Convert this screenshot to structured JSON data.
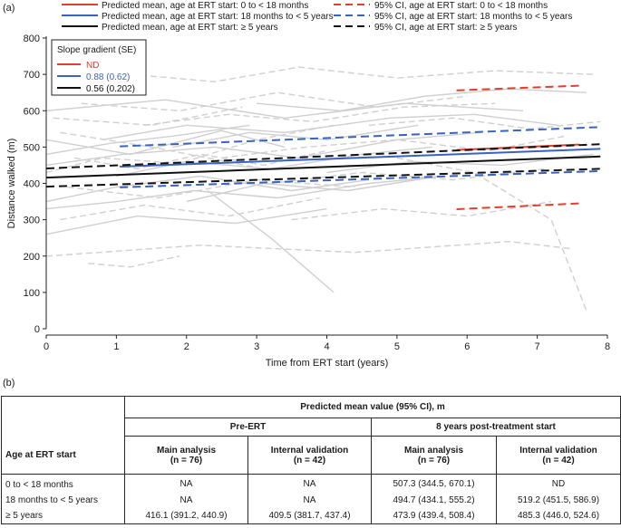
{
  "panel_a_label": "(a)",
  "panel_b_label": "(b)",
  "legend": {
    "left": [
      {
        "label": "Predicted mean, age at ERT start: 0 to < 18 months",
        "color": "#e0402e",
        "dashed": false
      },
      {
        "label": "Predicted mean, age at ERT start: 18 months to < 5 years",
        "color": "#3a62c0",
        "dashed": false
      },
      {
        "label": "Predicted mean, age at ERT start: ≥ 5 years",
        "color": "#111111",
        "dashed": false
      }
    ],
    "right": [
      {
        "label": "95% CI, age at ERT start: 0 to < 18 months",
        "color": "#e0402e",
        "dashed": true
      },
      {
        "label": "95% CI, age at ERT start: 18 months to < 5 years",
        "color": "#3a62c0",
        "dashed": true
      },
      {
        "label": "95% CI, age at ERT start: ≥ 5 years",
        "color": "#111111",
        "dashed": true
      }
    ]
  },
  "slope_box": {
    "title": "Slope gradient (SE)",
    "items": [
      {
        "value": "ND",
        "color": "#e0402e"
      },
      {
        "value": "0.88 (0.62)",
        "color": "#3a62c0"
      },
      {
        "value": "0.56 (0.202)",
        "color": "#111111"
      }
    ]
  },
  "chart_data": {
    "type": "line",
    "xlabel": "Time from ERT start (years)",
    "ylabel": "Distance walked (m)",
    "xlim": [
      0,
      8
    ],
    "ylim": [
      0,
      800
    ],
    "xticks": [
      0,
      1,
      2,
      3,
      4,
      5,
      6,
      7,
      8
    ],
    "yticks": [
      0,
      100,
      200,
      300,
      400,
      500,
      600,
      700,
      800
    ],
    "series": [
      {
        "name": "Predicted mean, 0 to < 18 months",
        "color": "#e0402e",
        "dash": false,
        "x": [
          5.85,
          7.6
        ],
        "y": [
          492,
          507
        ]
      },
      {
        "name": "95% CI, 0 to < 18 months (upper)",
        "color": "#e0402e",
        "dash": true,
        "x": [
          5.85,
          7.6
        ],
        "y": [
          656,
          669
        ]
      },
      {
        "name": "95% CI, 0 to < 18 months (lower)",
        "color": "#e0402e",
        "dash": true,
        "x": [
          5.85,
          7.6
        ],
        "y": [
          329,
          345
        ]
      },
      {
        "name": "Predicted mean, 18 months to < 5 years",
        "color": "#3a62c0",
        "dash": false,
        "x": [
          1.05,
          7.9
        ],
        "y": [
          446,
          495
        ]
      },
      {
        "name": "95% CI, 18 months to < 5 years (upper)",
        "color": "#3a62c0",
        "dash": true,
        "x": [
          1.05,
          7.9
        ],
        "y": [
          502,
          555
        ]
      },
      {
        "name": "95% CI, 18 months to < 5 years (lower)",
        "color": "#3a62c0",
        "dash": true,
        "x": [
          1.05,
          7.9
        ],
        "y": [
          389,
          434
        ]
      },
      {
        "name": "Predicted mean, ≥ 5 years",
        "color": "#111111",
        "dash": false,
        "x": [
          0,
          7.9
        ],
        "y": [
          416,
          474
        ]
      },
      {
        "name": "95% CI, ≥ 5 years (upper)",
        "color": "#111111",
        "dash": true,
        "x": [
          0,
          7.9
        ],
        "y": [
          441,
          508
        ]
      },
      {
        "name": "95% CI, ≥ 5 years (lower)",
        "color": "#111111",
        "dash": true,
        "x": [
          0,
          7.9
        ],
        "y": [
          391,
          440
        ]
      }
    ],
    "background_trajectories": [
      {
        "x": [
          0,
          1.2,
          2.5,
          3.4
        ],
        "y": [
          520,
          480,
          545,
          500
        ],
        "dash": false
      },
      {
        "x": [
          0,
          0.8,
          1.9,
          3.0,
          4.1
        ],
        "y": [
          430,
          470,
          455,
          520,
          560
        ],
        "dash": true
      },
      {
        "x": [
          0.1,
          1.5,
          2.8
        ],
        "y": [
          580,
          560,
          610
        ],
        "dash": true
      },
      {
        "x": [
          0,
          1.0,
          2.2,
          3.5,
          4.6
        ],
        "y": [
          350,
          390,
          420,
          380,
          410
        ],
        "dash": false
      },
      {
        "x": [
          0.2,
          1.4,
          2.6,
          3.9
        ],
        "y": [
          300,
          340,
          310,
          360
        ],
        "dash": true
      },
      {
        "x": [
          0,
          1.1,
          2.4,
          3.6,
          5.0,
          6.2
        ],
        "y": [
          450,
          480,
          500,
          470,
          520,
          540
        ],
        "dash": false
      },
      {
        "x": [
          0.3,
          1.6,
          3.0,
          4.4
        ],
        "y": [
          390,
          360,
          410,
          390
        ],
        "dash": true
      },
      {
        "x": [
          0,
          0.9,
          1.8,
          2.9
        ],
        "y": [
          480,
          510,
          530,
          560
        ],
        "dash": false
      },
      {
        "x": [
          0.5,
          1.9,
          3.3,
          4.7,
          6.0
        ],
        "y": [
          620,
          600,
          650,
          610,
          640
        ],
        "dash": true
      },
      {
        "x": [
          0,
          1.3,
          2.7,
          4.0
        ],
        "y": [
          260,
          310,
          290,
          330
        ],
        "dash": false
      },
      {
        "x": [
          0.2,
          1.5,
          2.3,
          3.1
        ],
        "y": [
          540,
          500,
          470,
          440
        ],
        "dash": true
      },
      {
        "x": [
          1.0,
          2.0,
          3.2,
          4.5,
          5.5
        ],
        "y": [
          420,
          460,
          440,
          480,
          500
        ],
        "dash": false
      },
      {
        "x": [
          1.4,
          2.6,
          3.8,
          5.1,
          6.4
        ],
        "y": [
          560,
          590,
          570,
          610,
          620
        ],
        "dash": true
      },
      {
        "x": [
          2.0,
          3.1,
          4.3,
          5.6
        ],
        "y": [
          350,
          400,
          380,
          420
        ],
        "dash": false
      },
      {
        "x": [
          2.5,
          3.7,
          5.0,
          6.3,
          7.4
        ],
        "y": [
          470,
          500,
          520,
          490,
          530
        ],
        "dash": true
      },
      {
        "x": [
          3.0,
          4.2,
          5.4,
          6.6,
          7.7
        ],
        "y": [
          620,
          600,
          640,
          660,
          650
        ],
        "dash": false
      },
      {
        "x": [
          3.5,
          4.8,
          6.0,
          7.2
        ],
        "y": [
          300,
          330,
          310,
          350
        ],
        "dash": true
      },
      {
        "x": [
          4.0,
          5.2,
          6.5,
          7.8
        ],
        "y": [
          430,
          460,
          450,
          480
        ],
        "dash": false
      },
      {
        "x": [
          0,
          2.2,
          4.4,
          6.6,
          7.5
        ],
        "y": [
          200,
          230,
          210,
          240,
          220
        ],
        "dash": true
      },
      {
        "x": [
          0.6,
          1.2,
          1.9
        ],
        "y": [
          180,
          170,
          200
        ],
        "dash": true
      },
      {
        "x": [
          2.3,
          3.2,
          4.1
        ],
        "y": [
          380,
          250,
          100
        ],
        "dash": false
      },
      {
        "x": [
          5.0,
          6.1,
          7.2,
          7.7
        ],
        "y": [
          470,
          430,
          300,
          50
        ],
        "dash": true
      },
      {
        "x": [
          1.2,
          2.4,
          3.6,
          5.0,
          6.4,
          7.8
        ],
        "y": [
          700,
          680,
          720,
          690,
          710,
          700
        ],
        "dash": true
      },
      {
        "x": [
          0,
          1.7,
          3.4,
          5.1,
          6.8
        ],
        "y": [
          600,
          630,
          580,
          620,
          600
        ],
        "dash": false
      },
      {
        "x": [
          0.4,
          1.3,
          2.2,
          3.1,
          4.0
        ],
        "y": [
          470,
          440,
          480,
          450,
          490
        ],
        "dash": true
      },
      {
        "x": [
          1.8,
          2.9,
          4.0,
          5.3
        ],
        "y": [
          500,
          540,
          520,
          560
        ],
        "dash": false
      },
      {
        "x": [
          3.2,
          4.5,
          5.8,
          7.1
        ],
        "y": [
          400,
          430,
          410,
          440
        ],
        "dash": true
      },
      {
        "x": [
          0,
          1.0,
          2.1,
          3.3,
          4.6,
          5.7
        ],
        "y": [
          330,
          350,
          380,
          360,
          400,
          420
        ],
        "dash": false
      },
      {
        "x": [
          4.6,
          5.8,
          6.9,
          7.9
        ],
        "y": [
          560,
          580,
          550,
          570
        ],
        "dash": true
      },
      {
        "x": [
          0.8,
          2.0,
          3.4,
          4.9,
          6.1,
          7.3
        ],
        "y": [
          520,
          560,
          540,
          580,
          590,
          560
        ],
        "dash": false
      }
    ]
  },
  "table": {
    "header_group": "Predicted mean value (95% CI), m",
    "pre_ert": "Pre-ERT",
    "post_ert": "8 years post-treatment start",
    "row_header": "Age at ERT start",
    "subcolumns": [
      {
        "title": "Main analysis",
        "n": "(n = 76)"
      },
      {
        "title": "Internal validation",
        "n": "(n = 42)"
      },
      {
        "title": "Main analysis",
        "n": "(n = 76)"
      },
      {
        "title": "Internal validation",
        "n": "(n = 42)"
      }
    ],
    "rows": [
      {
        "group": "0 to < 18 months",
        "values": [
          "NA",
          "NA",
          "507.3 (344.5, 670.1)",
          "ND"
        ]
      },
      {
        "group": "18 months to < 5 years",
        "values": [
          "NA",
          "NA",
          "494.7 (434.1, 555.2)",
          "519.2 (451.5, 586.9)"
        ]
      },
      {
        "group": "≥ 5 years",
        "values": [
          "416.1 (391.2, 440.9)",
          "409.5 (381.7, 437.4)",
          "473.9 (439.4, 508.4)",
          "485.3 (446.0, 524.6)"
        ]
      }
    ]
  }
}
